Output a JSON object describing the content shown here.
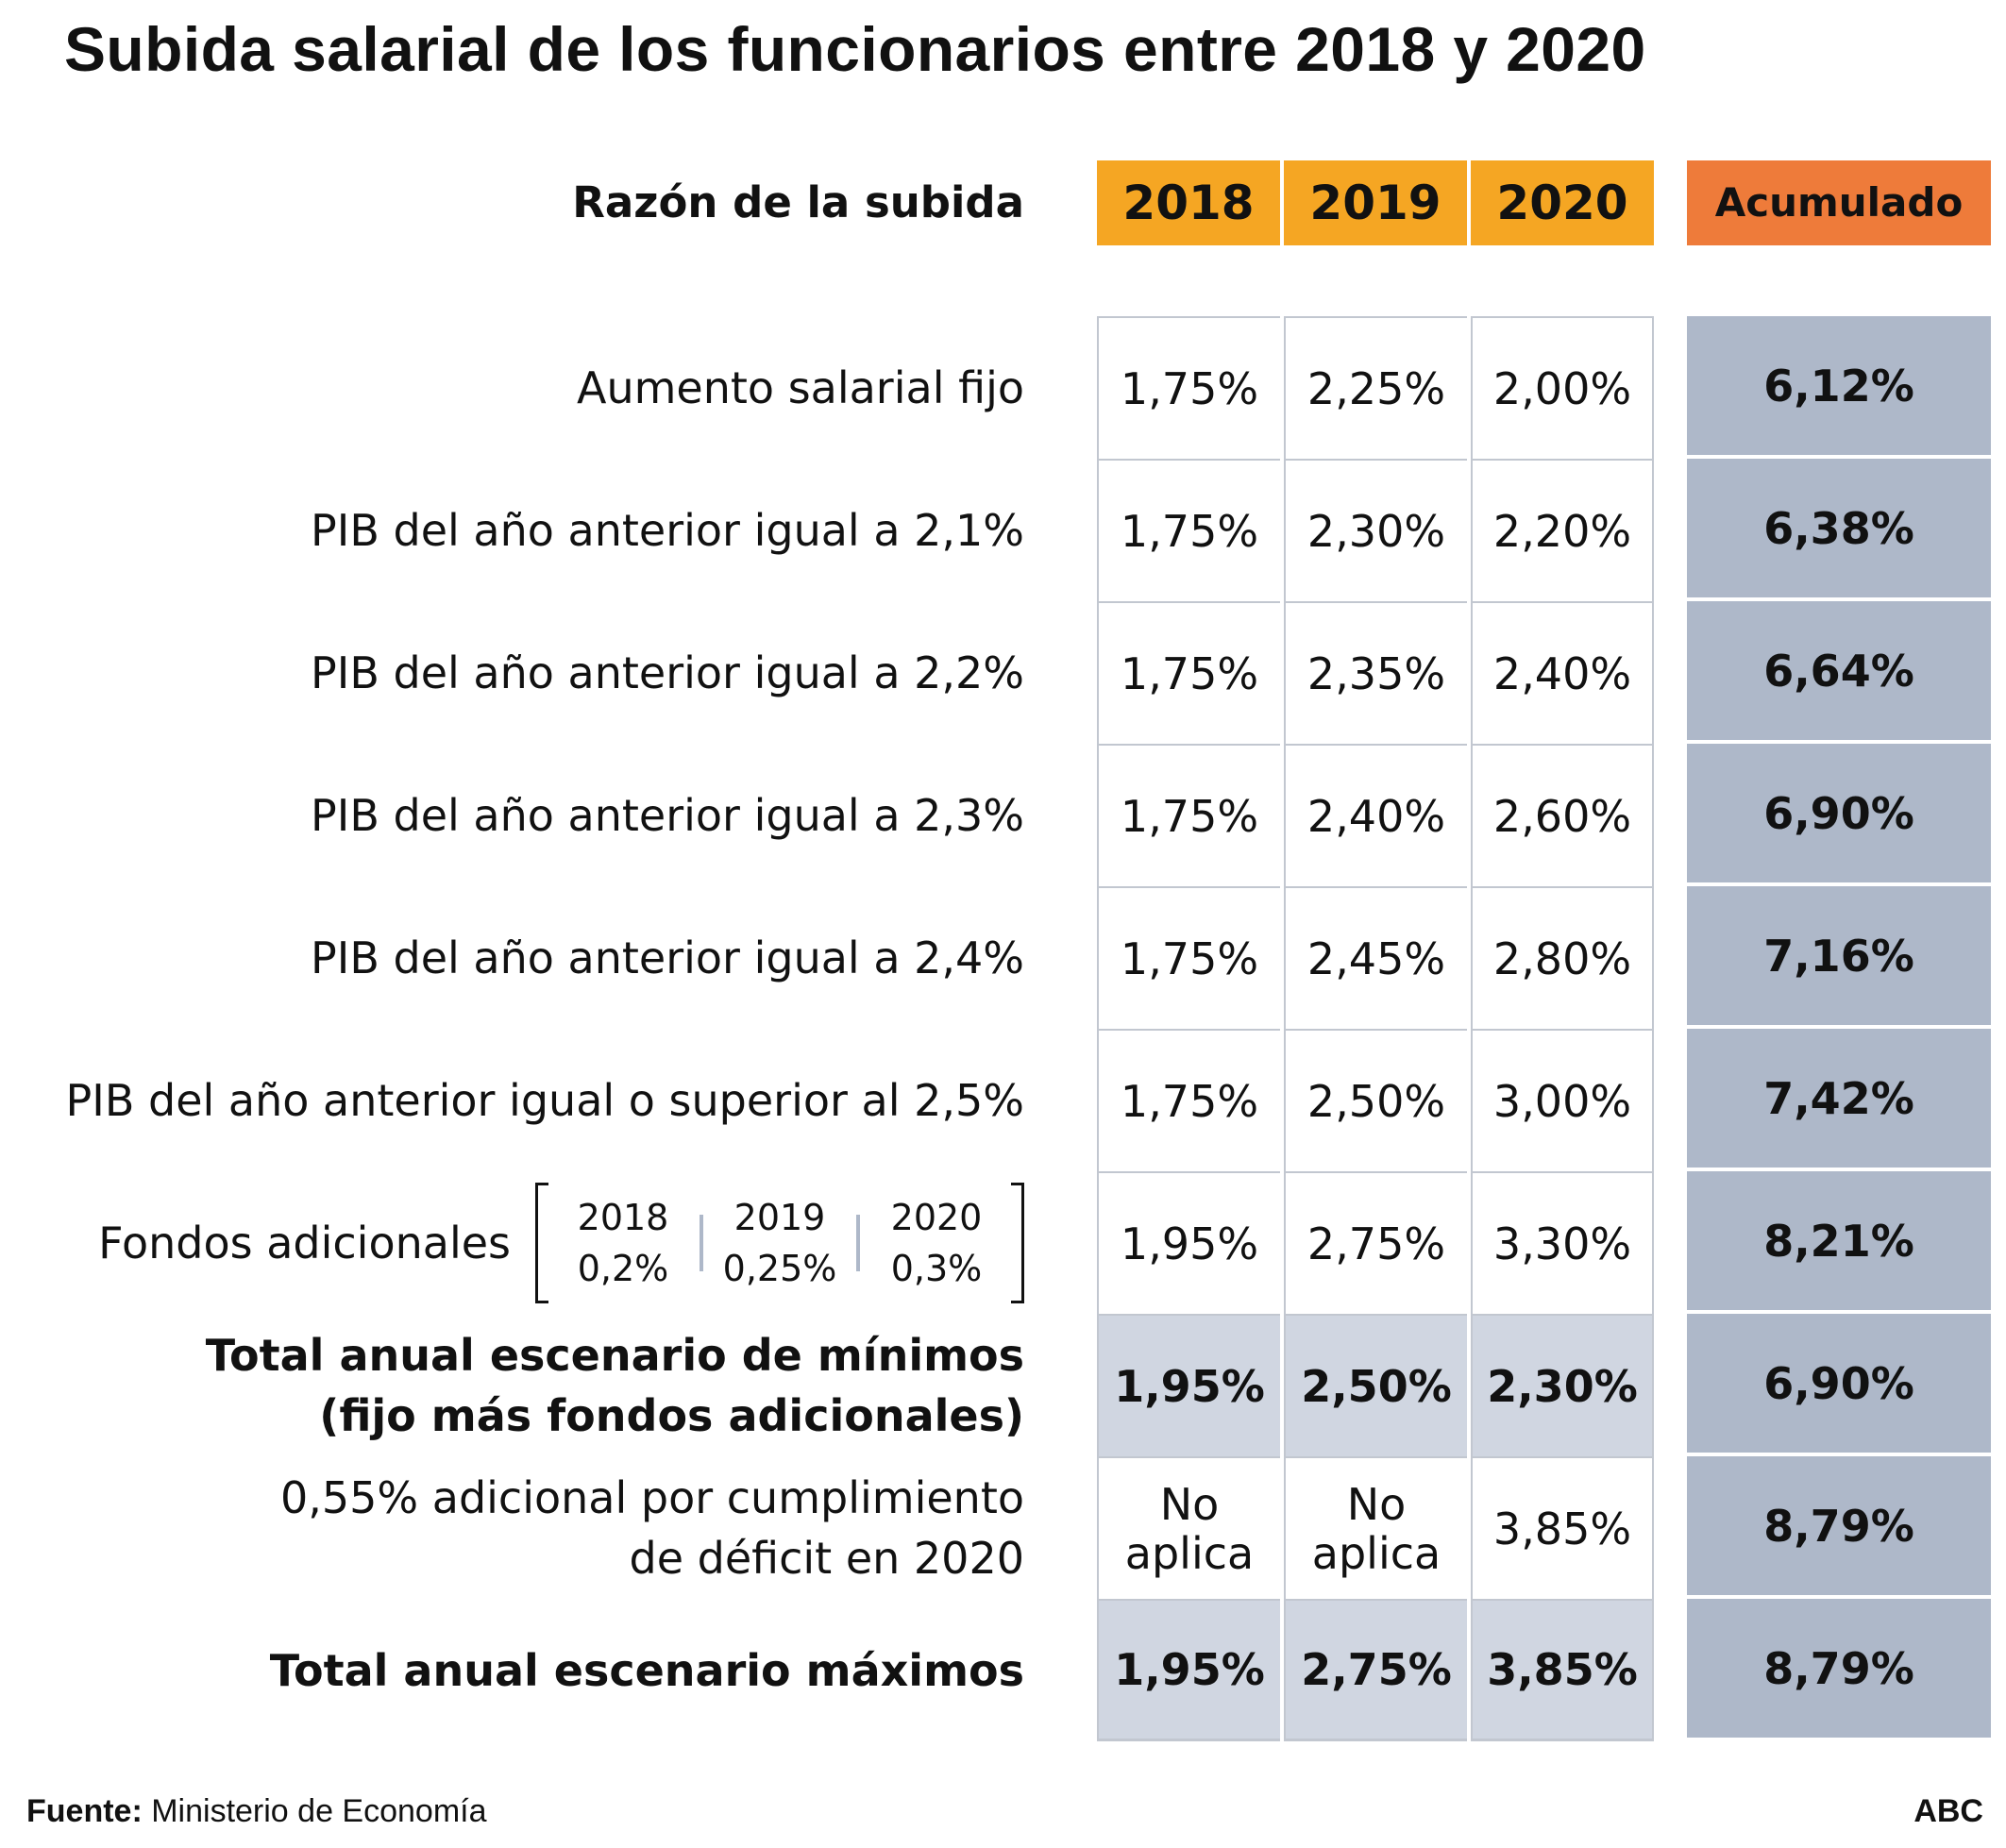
{
  "title": "Subida salarial de los funcionarios entre 2018 y 2020",
  "colors": {
    "year_header": "#f5a623",
    "accumulated_header": "#ee7b3a",
    "accumulated_cells": "#aeb8c9",
    "total_rows_shade": "#d0d6e1"
  },
  "chart_data": {
    "type": "table",
    "title": "Subida salarial de los funcionarios entre 2018 y 2020",
    "row_header": "Razón de la subida",
    "columns": [
      "2018",
      "2019",
      "2020"
    ],
    "accumulated_header": "Acumulado",
    "rows": [
      {
        "label": [
          "Aumento salarial fijo"
        ],
        "values": [
          "1,75%",
          "2,25%",
          "2,00%"
        ],
        "acumulado": "6,12%",
        "emphasis": false
      },
      {
        "label": [
          "PIB del año anterior igual a 2,1%"
        ],
        "values": [
          "1,75%",
          "2,30%",
          "2,20%"
        ],
        "acumulado": "6,38%",
        "emphasis": false
      },
      {
        "label": [
          "PIB del año anterior igual a 2,2%"
        ],
        "values": [
          "1,75%",
          "2,35%",
          "2,40%"
        ],
        "acumulado": "6,64%",
        "emphasis": false
      },
      {
        "label": [
          "PIB del año anterior igual a 2,3%"
        ],
        "values": [
          "1,75%",
          "2,40%",
          "2,60%"
        ],
        "acumulado": "6,90%",
        "emphasis": false
      },
      {
        "label": [
          "PIB del año anterior igual a 2,4%"
        ],
        "values": [
          "1,75%",
          "2,45%",
          "2,80%"
        ],
        "acumulado": "7,16%",
        "emphasis": false
      },
      {
        "label": [
          "PIB del año anterior igual o superior al 2,5%"
        ],
        "values": [
          "1,75%",
          "2,50%",
          "3,00%"
        ],
        "acumulado": "7,42%",
        "emphasis": false
      },
      {
        "label": [
          "Fondos adicionales"
        ],
        "fondos": [
          {
            "year": "2018",
            "value": "0,2%"
          },
          {
            "year": "2019",
            "value": "0,25%"
          },
          {
            "year": "2020",
            "value": "0,3%"
          }
        ],
        "values": [
          "1,95%",
          "2,75%",
          "3,30%"
        ],
        "acumulado": "8,21%",
        "emphasis": false
      },
      {
        "label": [
          "Total anual escenario de mínimos",
          "(fijo más fondos adicionales)"
        ],
        "values": [
          "1,95%",
          "2,50%",
          "2,30%"
        ],
        "acumulado": "6,90%",
        "emphasis": true
      },
      {
        "label": [
          "0,55% adicional por cumplimiento",
          "de déficit en 2020"
        ],
        "values": [
          [
            "No",
            "aplica"
          ],
          [
            "No",
            "aplica"
          ],
          "3,85%"
        ],
        "acumulado": "8,79%",
        "emphasis": false
      },
      {
        "label": [
          "Total anual escenario máximos"
        ],
        "values": [
          "1,95%",
          "2,75%",
          "3,85%"
        ],
        "acumulado": "8,79%",
        "emphasis": true
      }
    ]
  },
  "footer": {
    "source_label": "Fuente:",
    "source_text": " Ministerio de Economía",
    "brand": "ABC"
  }
}
